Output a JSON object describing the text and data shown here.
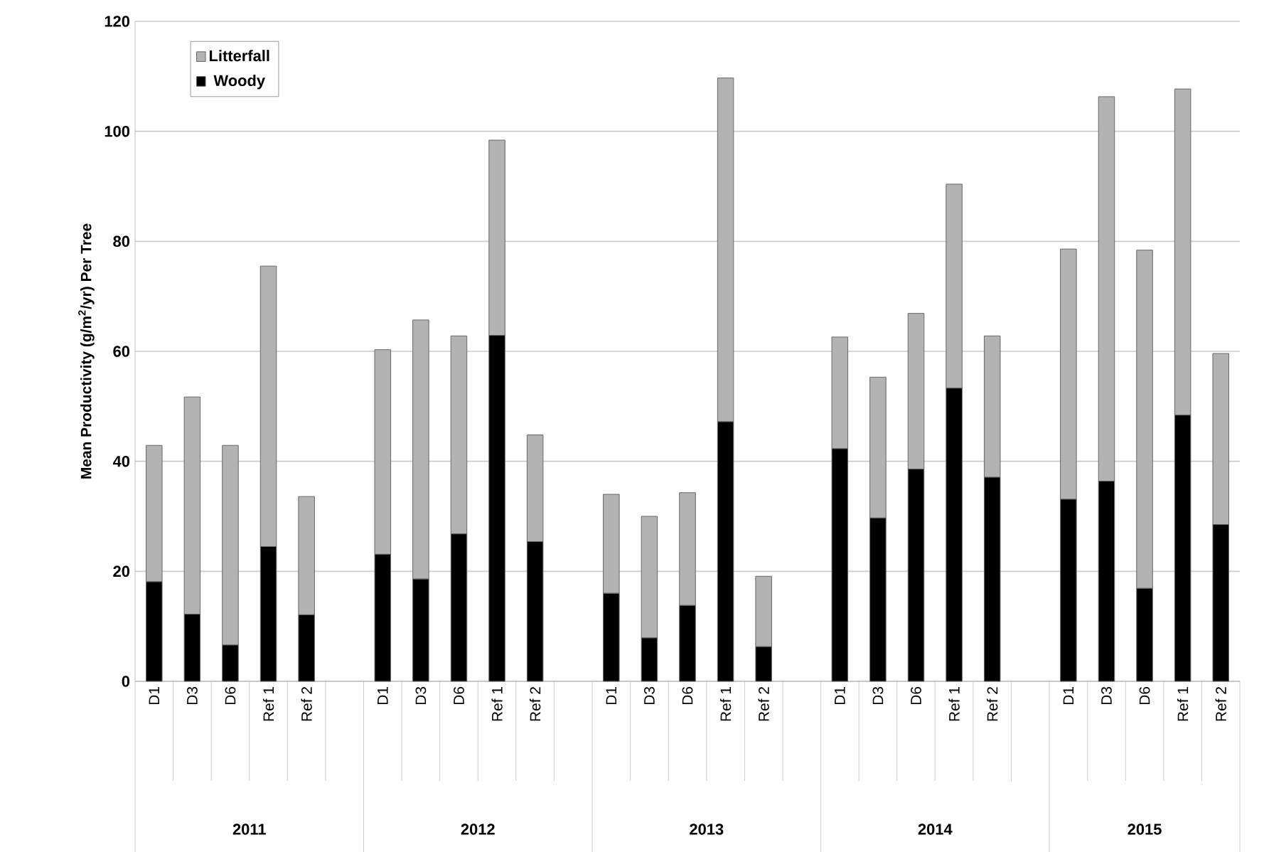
{
  "chart_data": {
    "type": "bar",
    "stacked": true,
    "ylabel": "Mean Productivity (g/m$^{2}$/yr) Per Tree",
    "categories": [
      "D1",
      "D3",
      "D6",
      "Ref 1",
      "Ref 2",
      null,
      "D1",
      "D3",
      "D6",
      "Ref 1",
      "Ref 2",
      null,
      "D1",
      "D3",
      "D6",
      "Ref 1",
      "Ref 2",
      null,
      "D1",
      "D3",
      "D6",
      "Ref 1",
      "Ref 2",
      null,
      "D1",
      "D3",
      "D6",
      "Ref 1",
      "Ref 2"
    ],
    "series": [
      {
        "name": "Woody",
        "color": "#000000",
        "values": [
          18.1,
          12.2,
          6.6,
          24.5,
          12.1,
          null,
          23.1,
          18.6,
          26.8,
          62.9,
          25.4,
          null,
          16.0,
          7.9,
          13.8,
          47.2,
          6.3,
          null,
          42.3,
          29.7,
          38.6,
          53.3,
          37.1,
          null,
          33.1,
          36.4,
          16.9,
          48.4,
          28.5
        ]
      },
      {
        "name": "Litterfall",
        "color": "#b3b3b3",
        "values": [
          24.8,
          39.5,
          36.3,
          51.0,
          21.5,
          null,
          37.2,
          47.1,
          36.0,
          35.5,
          19.4,
          null,
          18.0,
          22.1,
          20.5,
          62.5,
          12.8,
          null,
          20.3,
          25.6,
          28.3,
          37.1,
          25.7,
          null,
          45.5,
          69.9,
          61.5,
          59.3,
          31.1
        ]
      }
    ],
    "annotations": [
      "2011",
      "2012",
      "2013",
      "2014",
      "2015"
    ],
    "ylim": [
      0,
      120
    ],
    "yticks": [
      0,
      20,
      40,
      60,
      80,
      100,
      120
    ],
    "grid": "y",
    "legend": "top left"
  }
}
